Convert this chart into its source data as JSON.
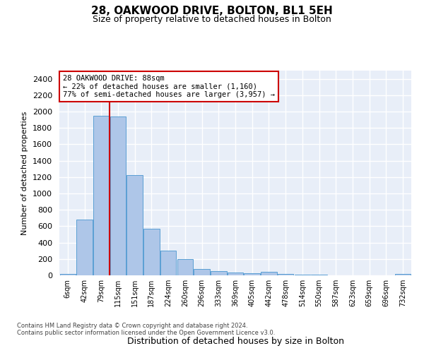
{
  "title1": "28, OAKWOOD DRIVE, BOLTON, BL1 5EH",
  "title2": "Size of property relative to detached houses in Bolton",
  "xlabel": "Distribution of detached houses by size in Bolton",
  "ylabel": "Number of detached properties",
  "categories": [
    "6sqm",
    "42sqm",
    "79sqm",
    "115sqm",
    "151sqm",
    "187sqm",
    "224sqm",
    "260sqm",
    "296sqm",
    "333sqm",
    "369sqm",
    "405sqm",
    "442sqm",
    "478sqm",
    "514sqm",
    "550sqm",
    "587sqm",
    "623sqm",
    "659sqm",
    "696sqm",
    "732sqm"
  ],
  "values": [
    15,
    680,
    1950,
    1940,
    1220,
    570,
    305,
    200,
    80,
    50,
    35,
    30,
    40,
    18,
    10,
    5,
    4,
    3,
    2,
    2,
    15
  ],
  "bar_color": "#aec6e8",
  "bar_edge_color": "#5a9fd4",
  "vline_x": 2.5,
  "vline_color": "#cc0000",
  "annotation_line1": "28 OAKWOOD DRIVE: 88sqm",
  "annotation_line2": "← 22% of detached houses are smaller (1,160)",
  "annotation_line3": "77% of semi-detached houses are larger (3,957) →",
  "annotation_box_facecolor": "#ffffff",
  "annotation_box_edgecolor": "#cc0000",
  "ylim": [
    0,
    2500
  ],
  "yticks": [
    0,
    200,
    400,
    600,
    800,
    1000,
    1200,
    1400,
    1600,
    1800,
    2000,
    2200,
    2400
  ],
  "axes_bg": "#e8eef8",
  "grid_color": "#ffffff",
  "fig_bg": "#ffffff",
  "title1_fontsize": 11,
  "title2_fontsize": 9,
  "ylabel_fontsize": 8,
  "xlabel_fontsize": 9,
  "footer1": "Contains HM Land Registry data © Crown copyright and database right 2024.",
  "footer2": "Contains public sector information licensed under the Open Government Licence v3.0."
}
